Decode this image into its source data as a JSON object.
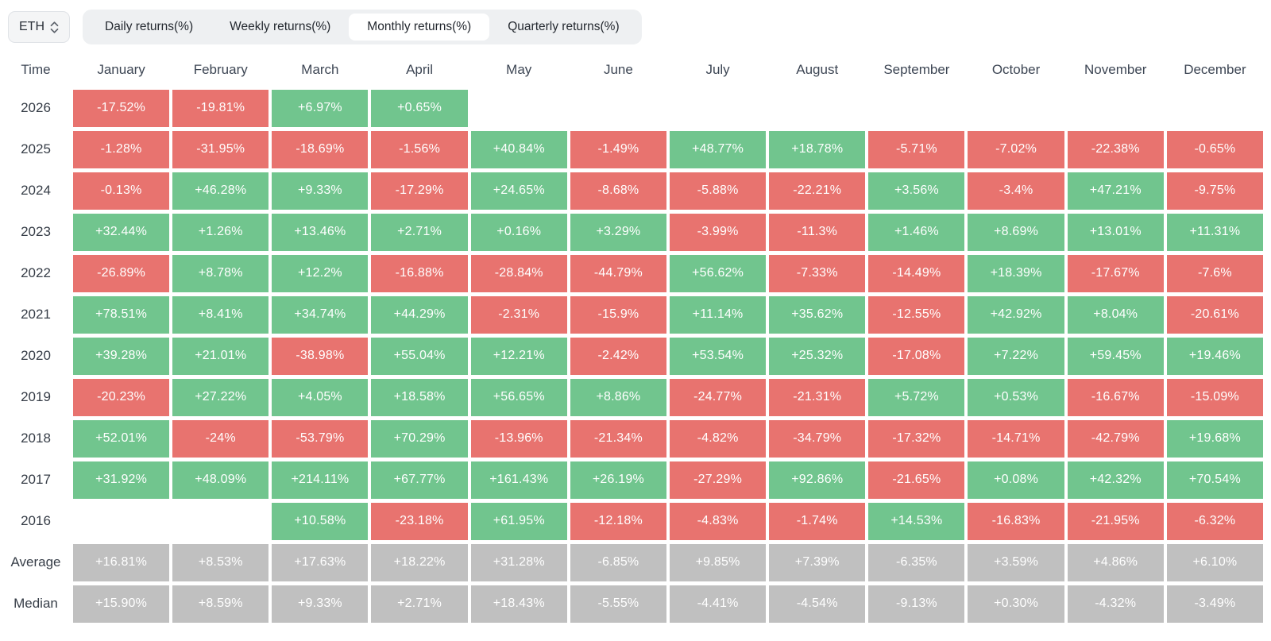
{
  "toolbar": {
    "asset_selector": {
      "value": "ETH"
    },
    "tabs": [
      {
        "label": "Daily returns(%)",
        "active": false
      },
      {
        "label": "Weekly returns(%)",
        "active": false
      },
      {
        "label": "Monthly returns(%)",
        "active": true
      },
      {
        "label": "Quarterly returns(%)",
        "active": false
      }
    ]
  },
  "colors": {
    "positive": "#71c58e",
    "negative": "#e8736f",
    "summary": "#c0c0c0",
    "tabbar_bg": "#eef0f2",
    "active_tab_bg": "#ffffff"
  },
  "chart_data": {
    "type": "heatmap",
    "title": "ETH Monthly returns(%)",
    "columns": [
      "Time",
      "January",
      "February",
      "March",
      "April",
      "May",
      "June",
      "July",
      "August",
      "September",
      "October",
      "November",
      "December"
    ],
    "rows": [
      {
        "label": "2026",
        "type": "year",
        "values": [
          "-17.52%",
          "-19.81%",
          "+6.97%",
          "+0.65%",
          "",
          "",
          "",
          "",
          "",
          "",
          "",
          ""
        ]
      },
      {
        "label": "2025",
        "type": "year",
        "values": [
          "-1.28%",
          "-31.95%",
          "-18.69%",
          "-1.56%",
          "+40.84%",
          "-1.49%",
          "+48.77%",
          "+18.78%",
          "-5.71%",
          "-7.02%",
          "-22.38%",
          "-0.65%"
        ]
      },
      {
        "label": "2024",
        "type": "year",
        "values": [
          "-0.13%",
          "+46.28%",
          "+9.33%",
          "-17.29%",
          "+24.65%",
          "-8.68%",
          "-5.88%",
          "-22.21%",
          "+3.56%",
          "-3.4%",
          "+47.21%",
          "-9.75%"
        ]
      },
      {
        "label": "2023",
        "type": "year",
        "values": [
          "+32.44%",
          "+1.26%",
          "+13.46%",
          "+2.71%",
          "+0.16%",
          "+3.29%",
          "-3.99%",
          "-11.3%",
          "+1.46%",
          "+8.69%",
          "+13.01%",
          "+11.31%"
        ]
      },
      {
        "label": "2022",
        "type": "year",
        "values": [
          "-26.89%",
          "+8.78%",
          "+12.2%",
          "-16.88%",
          "-28.84%",
          "-44.79%",
          "+56.62%",
          "-7.33%",
          "-14.49%",
          "+18.39%",
          "-17.67%",
          "-7.6%"
        ]
      },
      {
        "label": "2021",
        "type": "year",
        "values": [
          "+78.51%",
          "+8.41%",
          "+34.74%",
          "+44.29%",
          "-2.31%",
          "-15.9%",
          "+11.14%",
          "+35.62%",
          "-12.55%",
          "+42.92%",
          "+8.04%",
          "-20.61%"
        ]
      },
      {
        "label": "2020",
        "type": "year",
        "values": [
          "+39.28%",
          "+21.01%",
          "-38.98%",
          "+55.04%",
          "+12.21%",
          "-2.42%",
          "+53.54%",
          "+25.32%",
          "-17.08%",
          "+7.22%",
          "+59.45%",
          "+19.46%"
        ]
      },
      {
        "label": "2019",
        "type": "year",
        "values": [
          "-20.23%",
          "+27.22%",
          "+4.05%",
          "+18.58%",
          "+56.65%",
          "+8.86%",
          "-24.77%",
          "-21.31%",
          "+5.72%",
          "+0.53%",
          "-16.67%",
          "-15.09%"
        ]
      },
      {
        "label": "2018",
        "type": "year",
        "values": [
          "+52.01%",
          "-24%",
          "-53.79%",
          "+70.29%",
          "-13.96%",
          "-21.34%",
          "-4.82%",
          "-34.79%",
          "-17.32%",
          "-14.71%",
          "-42.79%",
          "+19.68%"
        ]
      },
      {
        "label": "2017",
        "type": "year",
        "values": [
          "+31.92%",
          "+48.09%",
          "+214.11%",
          "+67.77%",
          "+161.43%",
          "+26.19%",
          "-27.29%",
          "+92.86%",
          "-21.65%",
          "+0.08%",
          "+42.32%",
          "+70.54%"
        ]
      },
      {
        "label": "2016",
        "type": "year",
        "values": [
          "",
          "",
          "+10.58%",
          "-23.18%",
          "+61.95%",
          "-12.18%",
          "-4.83%",
          "-1.74%",
          "+14.53%",
          "-16.83%",
          "-21.95%",
          "-6.32%"
        ]
      },
      {
        "label": "Average",
        "type": "summary",
        "values": [
          "+16.81%",
          "+8.53%",
          "+17.63%",
          "+18.22%",
          "+31.28%",
          "-6.85%",
          "+9.85%",
          "+7.39%",
          "-6.35%",
          "+3.59%",
          "+4.86%",
          "+6.10%"
        ]
      },
      {
        "label": "Median",
        "type": "summary",
        "values": [
          "+15.90%",
          "+8.59%",
          "+9.33%",
          "+2.71%",
          "+18.43%",
          "-5.55%",
          "-4.41%",
          "-4.54%",
          "-9.13%",
          "+0.30%",
          "-4.32%",
          "-3.49%"
        ]
      }
    ]
  }
}
